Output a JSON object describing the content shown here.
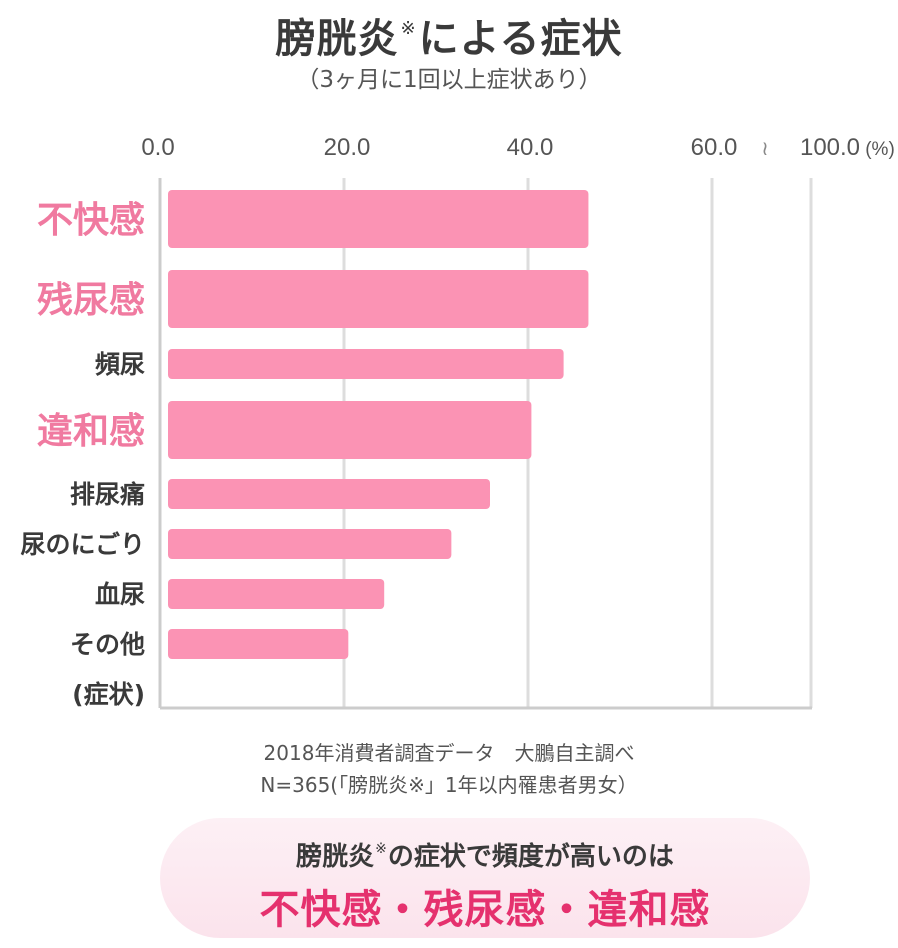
{
  "title": {
    "main": "膀胱炎",
    "mark": "※",
    "rest": "による症状"
  },
  "subtitle": "（3ヶ月に1回以上症状あり）",
  "chart_data": {
    "type": "bar",
    "orientation": "horizontal",
    "x_ticks": [
      "0.0",
      "20.0",
      "40.0",
      "60.0",
      "100.0"
    ],
    "axis_break_symbol": "≀",
    "unit": "(%)",
    "xlim": [
      0,
      100
    ],
    "categories": [
      "不快感",
      "残尿感",
      "頻尿",
      "違和感",
      "排尿痛",
      "尿のにごり",
      "血尿",
      "その他"
    ],
    "highlighted": [
      true,
      true,
      false,
      true,
      false,
      false,
      false,
      false
    ],
    "values": [
      45.7,
      45.7,
      43.0,
      39.5,
      35.0,
      30.8,
      23.5,
      19.6
    ],
    "ylabel": "(症状)",
    "bar_color": "#fb93b4",
    "highlight_label_color": "#f07aa0"
  },
  "source": {
    "line1": "2018年消費者調査データ　大鵬自主調べ",
    "line2": "N=365(「膀胱炎※」1年以内罹患者男女）"
  },
  "callout": {
    "line1_main": "膀胱炎",
    "line1_mark": "※",
    "line1_rest": "の症状で頻度が高いのは",
    "line2": "不快感・残尿感・違和感"
  }
}
